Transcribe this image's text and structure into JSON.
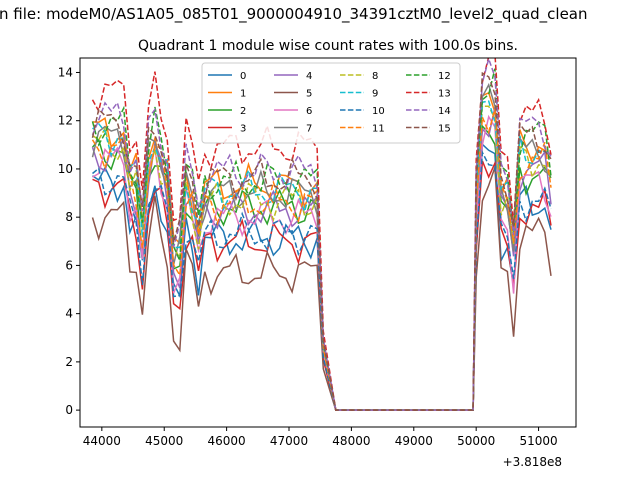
{
  "figure": {
    "suptitle": "n file: modeM0/AS1A05_085T01_9000004910_34391cztM0_level2_quad_clean",
    "offset_label": "+3.818e8"
  },
  "chart_data": {
    "type": "line",
    "title": "Quadrant 1 module wise count rates with 100.0s bins.",
    "xlabel": "",
    "ylabel": "",
    "x_offset": 381800000,
    "xlim": [
      43650,
      51600
    ],
    "ylim": [
      -0.7,
      14.6
    ],
    "xticks": [
      44000,
      45000,
      46000,
      47000,
      48000,
      49000,
      50000,
      51000
    ],
    "xtick_labels": [
      "44000",
      "45000",
      "46000",
      "47000",
      "48000",
      "49000",
      "50000",
      "51000"
    ],
    "yticks": [
      0,
      2,
      4,
      6,
      8,
      10,
      12,
      14
    ],
    "ytick_labels": [
      "0",
      "2",
      "4",
      "6",
      "8",
      "10",
      "12",
      "14"
    ],
    "grid": false,
    "legend": {
      "placement": "top-center",
      "columns": 4
    },
    "x_segments": [
      {
        "start": 43850,
        "end": 47550,
        "step": 100
      },
      {
        "start": 47750,
        "end": 49950,
        "step": 100
      },
      {
        "start": 50000,
        "end": 51250,
        "step": 100
      }
    ],
    "series": [
      {
        "name": "0",
        "color": "#1f77b4",
        "dash": "solid",
        "level": 7.1,
        "level2": 8.6,
        "peak": 1.0,
        "phase": 0.3
      },
      {
        "name": "1",
        "color": "#ff7f0e",
        "dash": "solid",
        "level": 9.3,
        "level2": 11.0,
        "peak": 1.0,
        "phase": 1.1
      },
      {
        "name": "2",
        "color": "#2ca02c",
        "dash": "solid",
        "level": 8.4,
        "level2": 9.8,
        "peak": 1.0,
        "phase": 2.0
      },
      {
        "name": "3",
        "color": "#d62728",
        "dash": "solid",
        "level": 7.0,
        "level2": 8.4,
        "peak": 1.0,
        "phase": 2.7
      },
      {
        "name": "4",
        "color": "#9467bd",
        "dash": "solid",
        "level": 8.3,
        "level2": 10.0,
        "peak": 1.0,
        "phase": 3.4
      },
      {
        "name": "5",
        "color": "#8c564b",
        "dash": "solid",
        "level": 5.7,
        "level2": 7.3,
        "peak": 1.0,
        "phase": 4.1
      },
      {
        "name": "6",
        "color": "#e377c2",
        "dash": "solid",
        "level": 8.0,
        "level2": 9.4,
        "peak": 1.0,
        "phase": 4.9
      },
      {
        "name": "7",
        "color": "#7f7f7f",
        "dash": "solid",
        "level": 9.0,
        "level2": 10.7,
        "peak": 1.0,
        "phase": 5.6
      },
      {
        "name": "8",
        "color": "#bcbd22",
        "dash": "dashed",
        "level": 8.7,
        "level2": 10.4,
        "peak": 1.0,
        "phase": 0.7
      },
      {
        "name": "9",
        "color": "#17becf",
        "dash": "dashed",
        "level": 9.1,
        "level2": 10.8,
        "peak": 1.0,
        "phase": 1.5
      },
      {
        "name": "10",
        "color": "#1f77b4",
        "dash": "dashed",
        "level": 7.3,
        "level2": 8.7,
        "peak": 1.0,
        "phase": 2.3
      },
      {
        "name": "11",
        "color": "#ff7f0e",
        "dash": "dashed",
        "level": 8.6,
        "level2": 10.3,
        "peak": 1.0,
        "phase": 3.0
      },
      {
        "name": "12",
        "color": "#2ca02c",
        "dash": "dashed",
        "level": 9.5,
        "level2": 11.4,
        "peak": 1.0,
        "phase": 3.8
      },
      {
        "name": "13",
        "color": "#d62728",
        "dash": "dashed",
        "level": 10.9,
        "level2": 12.2,
        "peak": 1.0,
        "phase": 4.5
      },
      {
        "name": "14",
        "color": "#9467bd",
        "dash": "dashed",
        "level": 9.9,
        "level2": 11.7,
        "peak": 1.0,
        "phase": 5.2
      },
      {
        "name": "15",
        "color": "#8c564b",
        "dash": "dashed",
        "level": 9.6,
        "level2": 11.3,
        "peak": 1.0,
        "phase": 6.0
      }
    ]
  }
}
